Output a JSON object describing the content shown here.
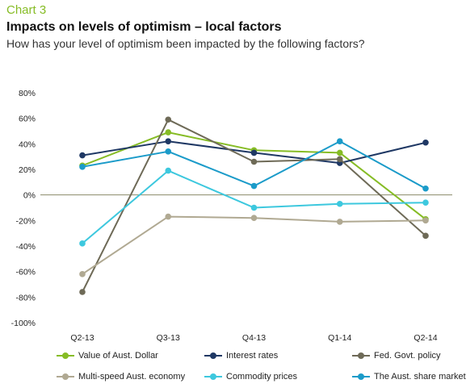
{
  "header": {
    "chart_number": "Chart 3",
    "title": "Impacts on levels of optimism – local factors",
    "subtitle": "How has your level of optimism been impacted by the following factors?"
  },
  "colors": {
    "accent": "#86bc25",
    "zero_line": "#8a8a6a"
  },
  "chart_data": {
    "type": "line",
    "categories": [
      "Q2-13",
      "Q3-13",
      "Q4-13",
      "Q1-14",
      "Q2-14"
    ],
    "ylim": [
      -100,
      80
    ],
    "yticks": [
      80,
      60,
      40,
      20,
      0,
      -20,
      -40,
      -60,
      -80,
      -100
    ],
    "ytick_labels": [
      "80%",
      "60%",
      "40%",
      "20%",
      "0%",
      "-20%",
      "-40%",
      "-60%",
      "-80%",
      "-100%"
    ],
    "grid": false,
    "legend_position": "bottom",
    "series": [
      {
        "name": "Value of Aust. Dollar",
        "color": "#86bc25",
        "values": [
          23,
          49,
          35,
          33,
          -19
        ]
      },
      {
        "name": "Interest rates",
        "color": "#1f3864",
        "values": [
          31,
          42,
          33,
          25,
          41
        ]
      },
      {
        "name": "Fed. Govt. policy",
        "color": "#6e6a57",
        "values": [
          -76,
          59,
          26,
          28,
          -32
        ]
      },
      {
        "name": "Multi-speed Aust. economy",
        "color": "#b0a992",
        "values": [
          -62,
          -17,
          -18,
          -21,
          -20
        ]
      },
      {
        "name": "Commodity prices",
        "color": "#3dc8de",
        "values": [
          -38,
          19,
          -10,
          -7,
          -6
        ]
      },
      {
        "name": "The Aust. share market",
        "color": "#1b9bc9",
        "values": [
          22,
          34,
          7,
          42,
          5
        ]
      }
    ]
  }
}
